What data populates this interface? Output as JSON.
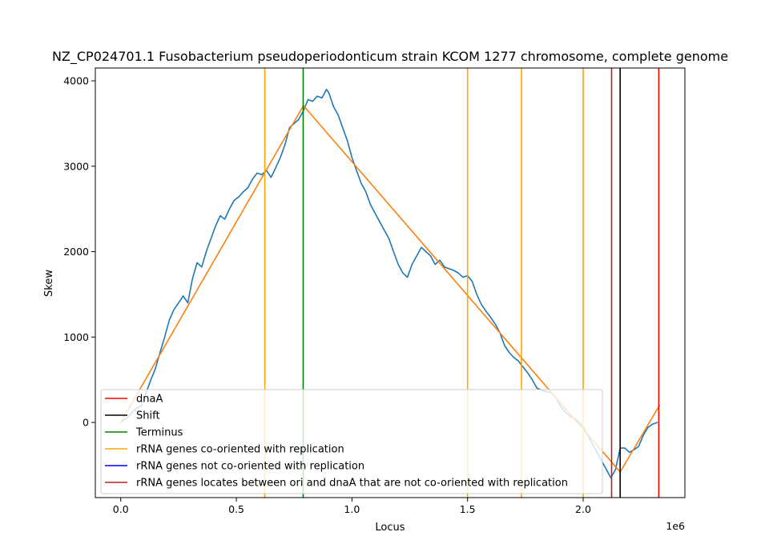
{
  "chart_data": {
    "type": "line",
    "title": "NZ_CP024701.1 Fusobacterium pseudoperiodonticum strain KCOM 1277 chromosome, complete genome",
    "xlabel": "Locus",
    "ylabel": "Skew",
    "x_scale_label": "1e6",
    "xlim": [
      -0.11,
      2.44
    ],
    "ylim": [
      -880,
      4150
    ],
    "x_ticks": [
      0.0,
      0.5,
      1.0,
      1.5,
      2.0
    ],
    "x_tick_labels": [
      "0.0",
      "0.5",
      "1.0",
      "1.5",
      "2.0"
    ],
    "y_ticks": [
      0,
      1000,
      2000,
      3000,
      4000
    ],
    "y_tick_labels": [
      "0",
      "1000",
      "2000",
      "3000",
      "4000"
    ],
    "grid": false,
    "legend_position": "lower left",
    "colors": {
      "skew": "#1f77b4",
      "fit": "#ff7f0e",
      "dnaA": "#ff0000",
      "shift": "#000000",
      "terminus": "#008000",
      "rrna_co": "#ffa500",
      "rrna_not_co": "#0000ff",
      "rrna_between": "#b22222"
    },
    "series": [
      {
        "key": "skew",
        "color": "#1f77b4",
        "x": [
          0.0,
          0.03,
          0.06,
          0.09,
          0.11,
          0.13,
          0.15,
          0.17,
          0.19,
          0.21,
          0.23,
          0.25,
          0.27,
          0.29,
          0.31,
          0.33,
          0.35,
          0.37,
          0.39,
          0.41,
          0.43,
          0.45,
          0.47,
          0.49,
          0.51,
          0.53,
          0.55,
          0.57,
          0.59,
          0.61,
          0.63,
          0.65,
          0.67,
          0.69,
          0.71,
          0.73,
          0.75,
          0.77,
          0.79,
          0.81,
          0.83,
          0.85,
          0.87,
          0.89,
          0.9,
          0.92,
          0.94,
          0.96,
          0.98,
          1.0,
          1.02,
          1.04,
          1.06,
          1.08,
          1.1,
          1.12,
          1.14,
          1.16,
          1.18,
          1.2,
          1.22,
          1.24,
          1.26,
          1.28,
          1.3,
          1.32,
          1.34,
          1.36,
          1.38,
          1.4,
          1.42,
          1.44,
          1.46,
          1.48,
          1.5,
          1.52,
          1.54,
          1.56,
          1.58,
          1.6,
          1.62,
          1.64,
          1.66,
          1.68,
          1.7,
          1.72,
          1.74,
          1.76,
          1.78,
          1.8,
          1.82,
          1.84,
          1.86,
          1.88,
          1.9,
          1.92,
          1.94,
          1.96,
          1.98,
          2.0,
          2.02,
          2.04,
          2.06,
          2.08,
          2.1,
          2.12,
          2.14,
          2.16,
          2.18,
          2.2,
          2.22,
          2.24,
          2.26,
          2.28,
          2.3,
          2.32
        ],
        "y": [
          0,
          60,
          150,
          200,
          350,
          500,
          630,
          820,
          1000,
          1200,
          1320,
          1400,
          1480,
          1400,
          1680,
          1870,
          1820,
          2000,
          2150,
          2300,
          2420,
          2380,
          2500,
          2600,
          2640,
          2700,
          2750,
          2850,
          2920,
          2900,
          2950,
          2870,
          2980,
          3100,
          3250,
          3450,
          3500,
          3550,
          3650,
          3780,
          3760,
          3820,
          3800,
          3900,
          3860,
          3700,
          3600,
          3450,
          3300,
          3100,
          2950,
          2800,
          2700,
          2550,
          2450,
          2350,
          2250,
          2150,
          2000,
          1850,
          1750,
          1700,
          1850,
          1950,
          2050,
          2000,
          1950,
          1850,
          1900,
          1820,
          1800,
          1780,
          1750,
          1700,
          1720,
          1650,
          1500,
          1380,
          1300,
          1230,
          1150,
          1050,
          900,
          820,
          760,
          720,
          650,
          580,
          500,
          400,
          380,
          360,
          350,
          300,
          200,
          130,
          80,
          50,
          10,
          -50,
          -150,
          -250,
          -350,
          -450,
          -550,
          -650,
          -550,
          -300,
          -300,
          -350,
          -320,
          -280,
          -150,
          -60,
          -20,
          0
        ]
      },
      {
        "key": "fit",
        "color": "#ff7f0e",
        "x": [
          0.0,
          0.79,
          2.16,
          2.33
        ],
        "y": [
          0,
          3710,
          -580,
          200
        ]
      }
    ],
    "vlines": [
      {
        "key": "rrna_co",
        "color": "#ffa500",
        "x": 0.623
      },
      {
        "key": "terminus",
        "color": "#008000",
        "x": 0.789
      },
      {
        "key": "rrna_co",
        "color": "#ffa500",
        "x": 1.5
      },
      {
        "key": "rrna_co",
        "color": "#ffa500",
        "x": 1.733
      },
      {
        "key": "rrna_co",
        "color": "#ffa500",
        "x": 2.0
      },
      {
        "key": "rrna_between",
        "color": "#b22222",
        "x": 2.123
      },
      {
        "key": "shift",
        "color": "#000000",
        "x": 2.16
      },
      {
        "key": "dnaA",
        "color": "#ff0000",
        "x": 2.327
      }
    ],
    "legend": [
      {
        "key": "dnaA",
        "label": "dnaA",
        "color": "#ff0000"
      },
      {
        "key": "shift",
        "label": "Shift",
        "color": "#000000"
      },
      {
        "key": "terminus",
        "label": "Terminus",
        "color": "#008000"
      },
      {
        "key": "rrna_co",
        "label": "rRNA genes co-oriented with replication",
        "color": "#ffa500"
      },
      {
        "key": "rrna_not_co",
        "label": "rRNA genes not co-oriented with replication",
        "color": "#0000ff"
      },
      {
        "key": "rrna_between",
        "label": "rRNA genes locates between ori and dnaA that are not co-oriented with replication",
        "color": "#b22222"
      }
    ]
  }
}
